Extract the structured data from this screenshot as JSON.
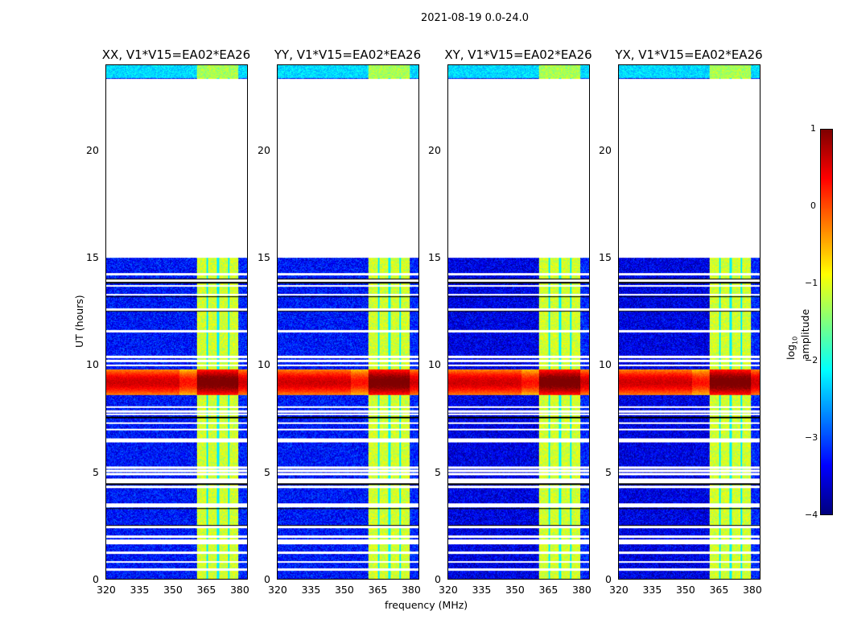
{
  "chart_data": {
    "type": "heatmap",
    "title": "2021-08-19 0.0-24.0",
    "xlabel": "frequency (MHz)",
    "ylabel": "UT (hours)",
    "xlim": [
      320,
      384
    ],
    "ylim": [
      0,
      24
    ],
    "xticks": [
      "320",
      "335",
      "350",
      "365",
      "380"
    ],
    "yticks": [
      "0",
      "5",
      "10",
      "15",
      "20"
    ],
    "panels": [
      {
        "title": "XX, V1*V15=EA02*EA26"
      },
      {
        "title": "YY, V1*V15=EA02*EA26"
      },
      {
        "title": "XY, V1*V15=EA02*EA26"
      },
      {
        "title": "YX, V1*V15=EA02*EA26"
      }
    ],
    "data_gaps_hours": [
      [
        15.0,
        23.4
      ]
    ],
    "high_amplitude_band_mhz": [
      361,
      380
    ],
    "rfi_time_band_hours": [
      8.6,
      9.8
    ],
    "colorbar": {
      "label": "log10 amplitude",
      "colormap": "jet",
      "range": [
        -4,
        1
      ],
      "ticks": [
        "1",
        "0",
        "−1",
        "−2",
        "−3",
        "−4"
      ]
    }
  }
}
